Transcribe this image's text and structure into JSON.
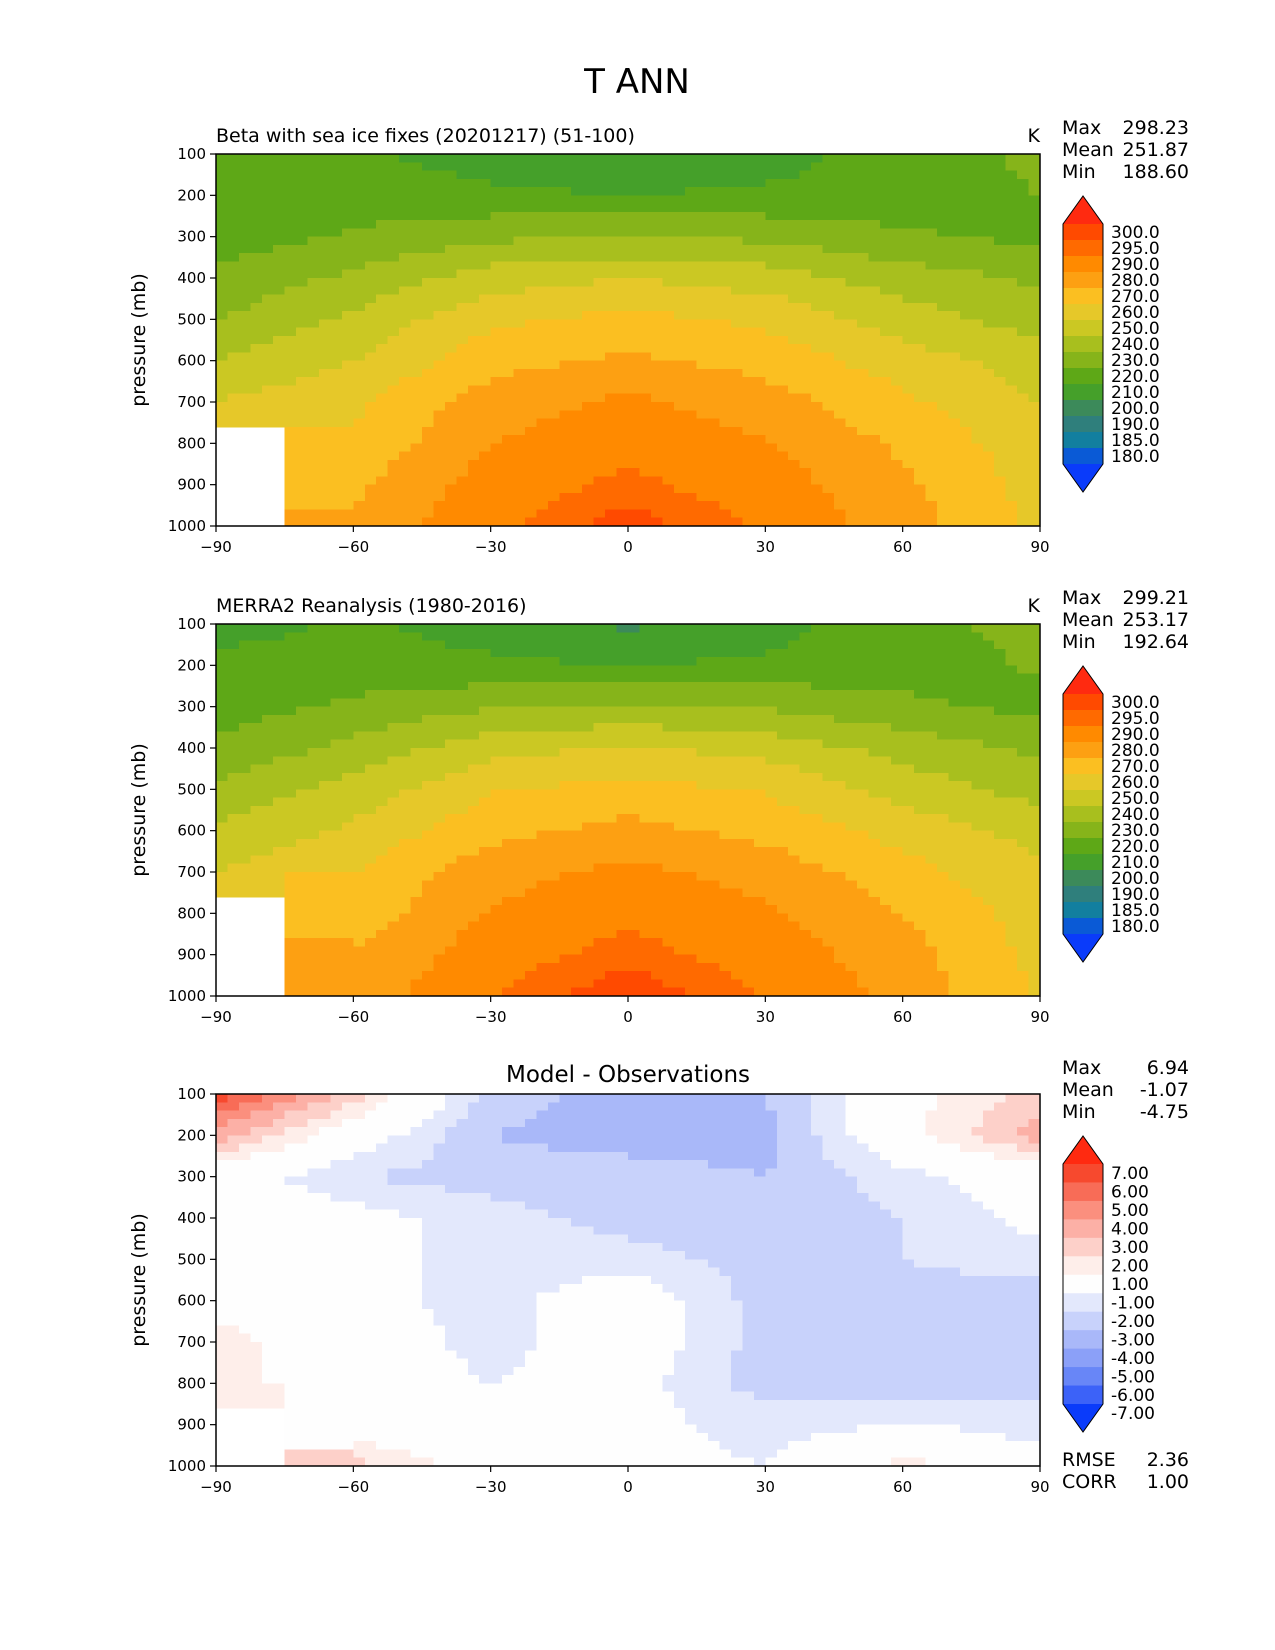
{
  "figure": {
    "title": "T ANN"
  },
  "chart_data": [
    {
      "type": "heatmap",
      "title": "Beta with sea ice fixes (20201217) (51-100)",
      "units": "K",
      "xlabel": "",
      "ylabel": "pressure (mb)",
      "xlim": [
        -90,
        90
      ],
      "ylim": [
        1000,
        100
      ],
      "x_ticks": [
        "−90",
        "−60",
        "−30",
        "0",
        "30",
        "60",
        "90"
      ],
      "y_ticks": [
        "100",
        "200",
        "300",
        "400",
        "500",
        "600",
        "700",
        "800",
        "900",
        "1000"
      ],
      "stats": [
        {
          "label": "Max",
          "value": "298.23"
        },
        {
          "label": "Mean",
          "value": "251.87"
        },
        {
          "label": "Min",
          "value": "188.60"
        }
      ],
      "colorbar": {
        "levels": [
          "300.0",
          "295.0",
          "290.0",
          "280.0",
          "270.0",
          "260.0",
          "250.0",
          "240.0",
          "230.0",
          "220.0",
          "210.0",
          "200.0",
          "190.0",
          "185.0",
          "180.0"
        ],
        "colors": [
          "#ff2a10",
          "#ff4a00",
          "#ff6a00",
          "#ff8a00",
          "#fda012",
          "#fbbf21",
          "#e6c829",
          "#cbc823",
          "#a8bf1e",
          "#86b41a",
          "#5ea817",
          "#45a02a",
          "#3c8a5a",
          "#2f7f7c",
          "#127f9f",
          "#0a5ad6",
          "#0a3bfa"
        ],
        "extend": "both"
      },
      "x": [
        -90,
        -60,
        -30,
        0,
        30,
        60,
        90
      ],
      "y": [
        100,
        200,
        300,
        400,
        500,
        600,
        700,
        800,
        900,
        1000
      ],
      "z": [
        [
          216,
          212,
          205,
          200,
          205,
          215,
          222
        ],
        [
          213,
          216,
          212,
          210,
          212,
          216,
          220
        ],
        [
          215,
          221,
          228,
          230,
          228,
          221,
          218
        ],
        [
          222,
          232,
          245,
          250,
          245,
          235,
          228
        ],
        [
          230,
          242,
          258,
          263,
          258,
          245,
          235
        ],
        [
          240,
          250,
          266,
          272,
          266,
          255,
          245
        ],
        [
          250,
          258,
          275,
          282,
          275,
          262,
          250
        ],
        [
          null,
          262,
          280,
          287,
          281,
          268,
          254
        ],
        [
          null,
          268,
          285,
          292,
          285,
          272,
          256
        ],
        [
          null,
          272,
          288,
          298,
          289,
          275,
          258
        ]
      ]
    },
    {
      "type": "heatmap",
      "title": "MERRA2 Reanalysis (1980-2016)",
      "units": "K",
      "xlabel": "",
      "ylabel": "pressure (mb)",
      "xlim": [
        -90,
        90
      ],
      "ylim": [
        1000,
        100
      ],
      "x_ticks": [
        "−90",
        "−60",
        "−30",
        "0",
        "30",
        "60",
        "90"
      ],
      "y_ticks": [
        "100",
        "200",
        "300",
        "400",
        "500",
        "600",
        "700",
        "800",
        "900",
        "1000"
      ],
      "stats": [
        {
          "label": "Max",
          "value": "299.21"
        },
        {
          "label": "Mean",
          "value": "253.17"
        },
        {
          "label": "Min",
          "value": "192.64"
        }
      ],
      "colorbar": {
        "levels": [
          "300.0",
          "295.0",
          "290.0",
          "280.0",
          "270.0",
          "260.0",
          "250.0",
          "240.0",
          "230.0",
          "220.0",
          "210.0",
          "200.0",
          "190.0",
          "185.0",
          "180.0"
        ],
        "colors": [
          "#ff2a10",
          "#ff4a00",
          "#ff6a00",
          "#ff8a00",
          "#fda012",
          "#fbbf21",
          "#e6c829",
          "#cbc823",
          "#a8bf1e",
          "#86b41a",
          "#5ea817",
          "#45a02a",
          "#3c8a5a",
          "#2f7f7c",
          "#127f9f",
          "#0a5ad6",
          "#0a3bfa"
        ],
        "extend": "both"
      },
      "x": [
        -90,
        -60,
        -30,
        0,
        30,
        60,
        90
      ],
      "y": [
        100,
        200,
        300,
        400,
        500,
        600,
        700,
        800,
        900,
        1000
      ],
      "z": [
        [
          205,
          212,
          205,
          198,
          205,
          218,
          222
        ],
        [
          214,
          214,
          212,
          210,
          212,
          216,
          221
        ],
        [
          215,
          222,
          229,
          231,
          229,
          222,
          217
        ],
        [
          222,
          233,
          246,
          251,
          246,
          236,
          228
        ],
        [
          232,
          244,
          259,
          264,
          259,
          246,
          236
        ],
        [
          242,
          252,
          267,
          273,
          267,
          256,
          246
        ],
        [
          250,
          260,
          276,
          283,
          276,
          264,
          252
        ],
        [
          null,
          264,
          281,
          288,
          282,
          270,
          255
        ],
        [
          null,
          270,
          286,
          293,
          286,
          274,
          257
        ],
        [
          null,
          274,
          290,
          299,
          290,
          277,
          259
        ]
      ]
    },
    {
      "type": "heatmap",
      "title": "Model - Observations",
      "units": "",
      "xlabel": "",
      "ylabel": "pressure (mb)",
      "xlim": [
        -90,
        90
      ],
      "ylim": [
        1000,
        100
      ],
      "x_ticks": [
        "−90",
        "−60",
        "−30",
        "0",
        "30",
        "60",
        "90"
      ],
      "y_ticks": [
        "100",
        "200",
        "300",
        "400",
        "500",
        "600",
        "700",
        "800",
        "900",
        "1000"
      ],
      "stats": [
        {
          "label": "Max",
          "value": "6.94"
        },
        {
          "label": "Mean",
          "value": "-1.07"
        },
        {
          "label": "Min",
          "value": "-4.75"
        }
      ],
      "stats_bottom": [
        {
          "label": "RMSE",
          "value": "2.36"
        },
        {
          "label": "CORR",
          "value": "1.00"
        }
      ],
      "colorbar": {
        "levels": [
          "7.00",
          "6.00",
          "5.00",
          "4.00",
          "3.00",
          "2.00",
          "1.00",
          "-1.00",
          "-2.00",
          "-3.00",
          "-4.00",
          "-5.00",
          "-6.00",
          "-7.00"
        ],
        "colors": [
          "#ff2a10",
          "#f7492e",
          "#f86c57",
          "#fb8f7e",
          "#fcb0a6",
          "#fdd0c9",
          "#feeeea",
          "#fefefe",
          "#e3e8fc",
          "#c8d2fb",
          "#a9b8f9",
          "#8ba0f8",
          "#6886f7",
          "#3c62f8",
          "#0a3bfa"
        ],
        "extend": "both"
      },
      "x": [
        -90,
        -60,
        -30,
        0,
        30,
        60,
        90
      ],
      "y": [
        100,
        200,
        300,
        400,
        500,
        600,
        700,
        800,
        900,
        1000
      ],
      "z": [
        [
          6.5,
          2.5,
          -2.5,
          -3.5,
          -3.0,
          0.5,
          2.5
        ],
        [
          3.5,
          0.0,
          -3.0,
          -3.5,
          -3.5,
          0.5,
          3.5
        ],
        [
          0.0,
          -2.0,
          -2.5,
          -2.5,
          -3.0,
          -1.5,
          0.0
        ],
        [
          0.0,
          -0.5,
          -1.5,
          -2.5,
          -2.5,
          -2.0,
          -0.5
        ],
        [
          0.0,
          -0.5,
          -1.5,
          -1.5,
          -2.5,
          -2.0,
          -1.5
        ],
        [
          0.5,
          -0.5,
          -1.5,
          0.0,
          -2.5,
          -2.5,
          -2.5
        ],
        [
          1.5,
          0.0,
          -1.5,
          0.0,
          -2.5,
          -2.5,
          -2.5
        ],
        [
          1.5,
          0.0,
          -1.0,
          -0.5,
          -2.5,
          -2.5,
          -2.5
        ],
        [
          null,
          0.0,
          -0.5,
          -0.5,
          -1.5,
          -1.0,
          -1.5
        ],
        [
          null,
          2.5,
          0.0,
          -0.5,
          -1.0,
          1.5,
          -0.5
        ]
      ]
    }
  ]
}
